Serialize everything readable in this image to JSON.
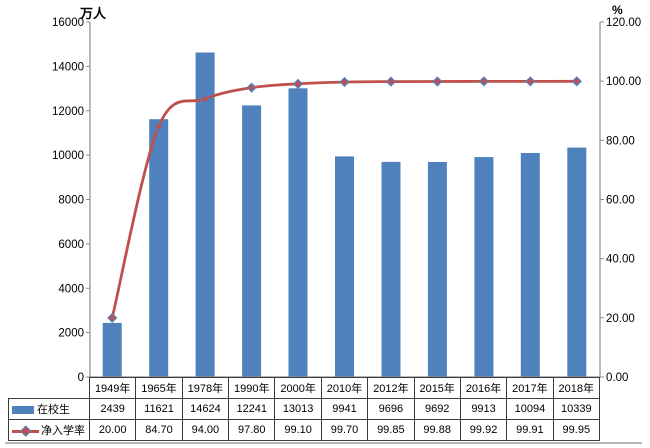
{
  "chart_data": {
    "type": "bar+line",
    "title": "",
    "categories": [
      "1949年",
      "1965年",
      "1978年",
      "1990年",
      "2000年",
      "2010年",
      "2012年",
      "2015年",
      "2016年",
      "2017年",
      "2018年"
    ],
    "series": [
      {
        "name": "在校生",
        "type": "bar",
        "color": "#4F81BD",
        "axis": "left",
        "values": [
          2439,
          11621,
          14624,
          12241,
          13013,
          9941,
          9696,
          9692,
          9913,
          10094,
          10339
        ]
      },
      {
        "name": "净入学率",
        "type": "line",
        "color": "#C0504D",
        "axis": "right",
        "marker": "diamond",
        "marker_fill": "#C0504D",
        "marker_border": "#4F81BD",
        "smooth": true,
        "values": [
          20.0,
          84.7,
          94.0,
          97.8,
          99.1,
          99.7,
          99.85,
          99.88,
          99.92,
          99.91,
          99.95
        ]
      }
    ],
    "left_axis": {
      "title": "万人",
      "min": 0,
      "max": 16000,
      "step": 2000,
      "tick_labels": [
        "0",
        "2000",
        "4000",
        "6000",
        "8000",
        "10000",
        "12000",
        "14000",
        "16000"
      ]
    },
    "right_axis": {
      "title": "%",
      "min": 0,
      "max": 120,
      "step": 20,
      "tick_labels": [
        "0.00",
        "20.00",
        "40.00",
        "60.00",
        "80.00",
        "100.00",
        "120.00"
      ]
    },
    "grid": false,
    "legend_position": "data-table-left"
  },
  "table": {
    "columns": [
      "1949年",
      "1965年",
      "1978年",
      "1990年",
      "2000年",
      "2010年",
      "2012年",
      "2015年",
      "2016年",
      "2017年",
      "2018年"
    ],
    "rows": [
      {
        "header": "在校生",
        "swatch": "bar",
        "values": [
          "2439",
          "11621",
          "14624",
          "12241",
          "13013",
          "9941",
          "9696",
          "9692",
          "9913",
          "10094",
          "10339"
        ]
      },
      {
        "header": "净入学率",
        "swatch": "line",
        "values": [
          "20.00",
          "84.70",
          "94.00",
          "97.80",
          "99.10",
          "99.70",
          "99.85",
          "99.88",
          "99.92",
          "99.91",
          "99.95"
        ]
      }
    ]
  }
}
